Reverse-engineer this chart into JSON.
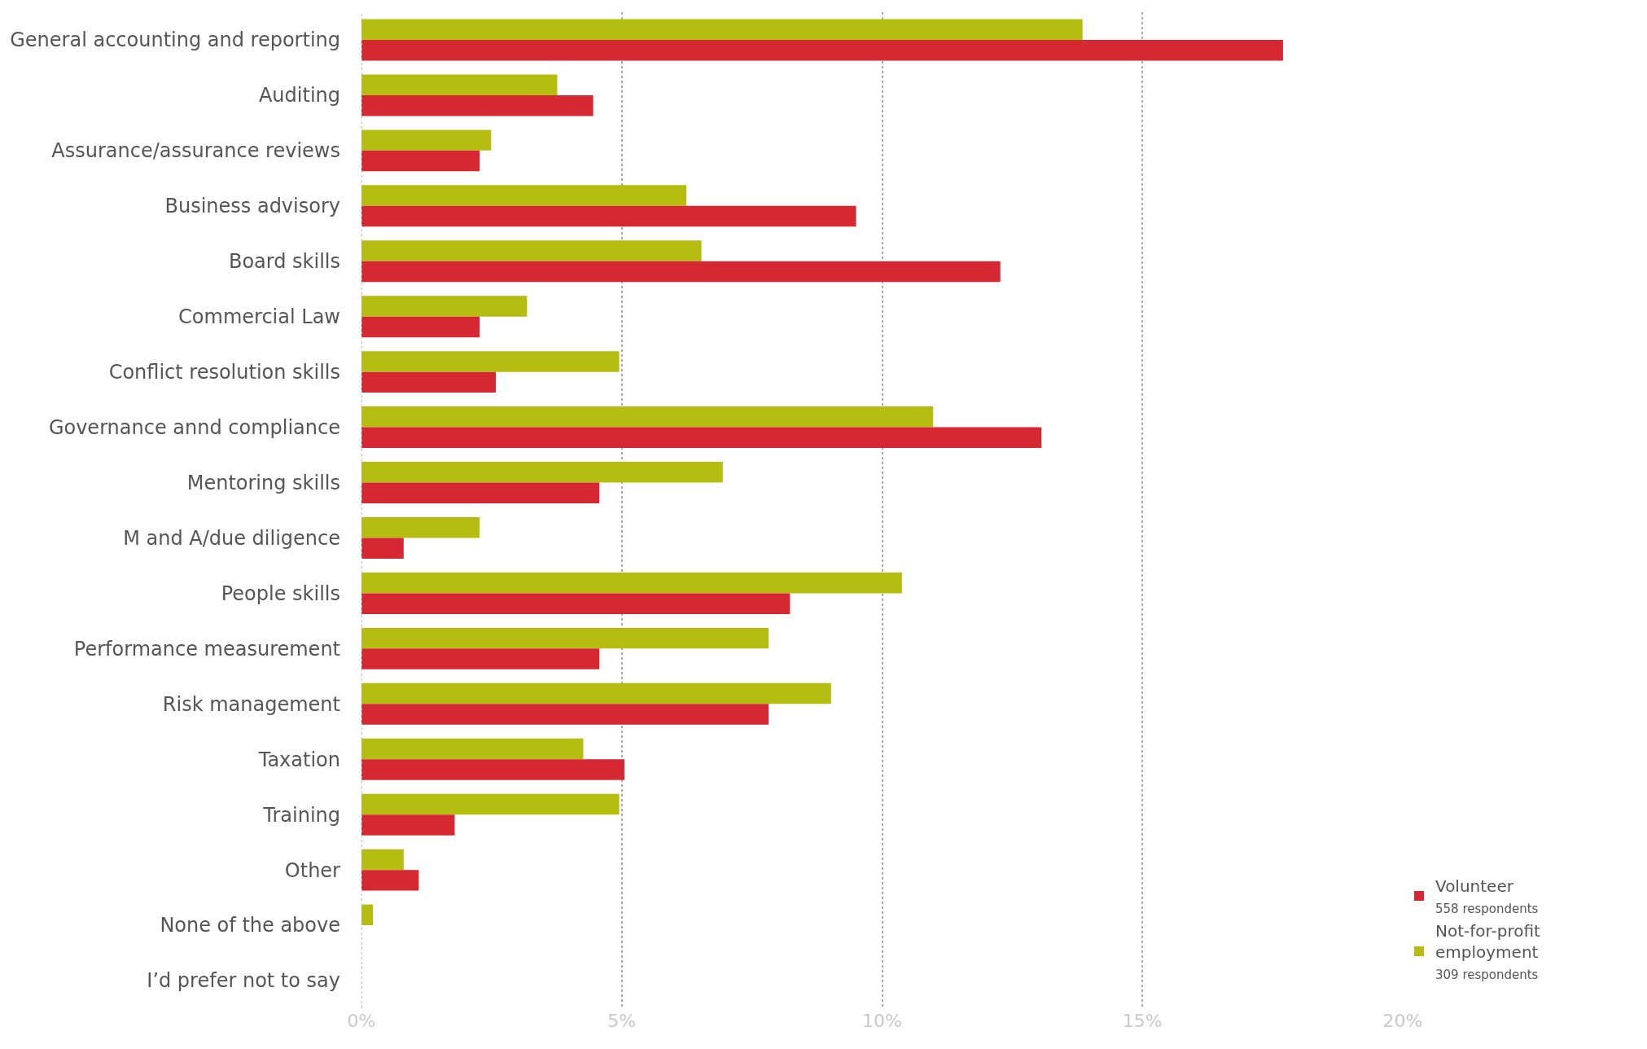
{
  "chart_data": {
    "type": "bar",
    "orientation": "horizontal",
    "categories": [
      "General accounting and reporting",
      "Auditing",
      "Assurance/assurance reviews",
      "Business advisory",
      "Board skills",
      "Commercial Law",
      "Conflict resolution skills",
      "Governance annd compliance",
      "Mentoring skills",
      "M and A/due diligence",
      "People skills",
      "Performance measurement",
      "Risk management",
      "Taxation",
      "Training",
      "Other",
      "None of the above",
      "I’d prefer not to say"
    ],
    "series": [
      {
        "name": "Not-for-profit\nemployment\n309 respondents",
        "color": "#b5bd10",
        "values": [
          13.85,
          3.76,
          2.49,
          6.24,
          6.53,
          3.18,
          4.95,
          10.98,
          6.94,
          2.27,
          10.38,
          7.82,
          9.02,
          4.26,
          4.95,
          0.81,
          0.22,
          0
        ]
      },
      {
        "name": "Volunteer\n558 respondents",
        "color": "#d62832",
        "values": [
          17.7,
          4.45,
          2.27,
          9.5,
          12.27,
          2.27,
          2.58,
          13.06,
          4.57,
          0.81,
          8.23,
          4.57,
          7.82,
          5.05,
          1.79,
          1.1,
          0,
          0
        ]
      }
    ],
    "xlim": [
      0,
      20
    ],
    "xticks": [
      {
        "value": 0,
        "label": "0%"
      },
      {
        "value": 5,
        "label": "5%"
      },
      {
        "value": 10,
        "label": "10%"
      },
      {
        "value": 15,
        "label": "15%"
      },
      {
        "value": 20,
        "label": "20%"
      }
    ],
    "grid": "x",
    "legend": "bottom right"
  }
}
